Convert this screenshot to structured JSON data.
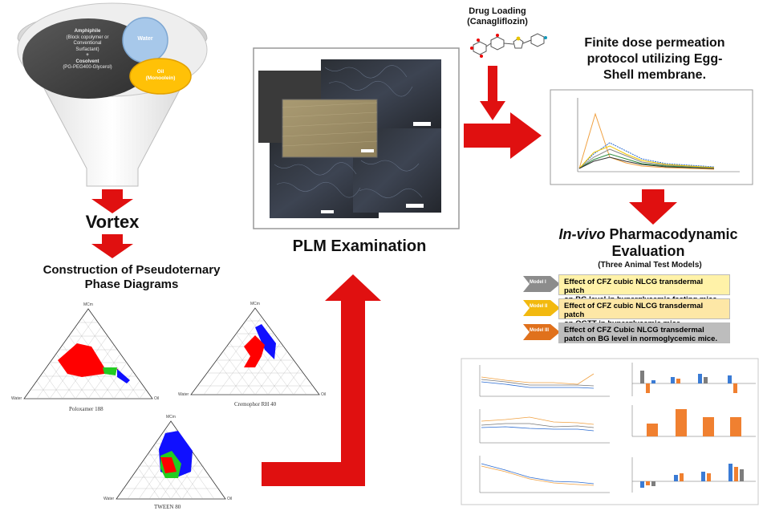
{
  "funnel": {
    "amphiphile_line1": "Amphiphile",
    "amphiphile_line2": "(Block copolymer or",
    "amphiphile_line3": "Conventional",
    "amphiphile_line4": "Surfactant)",
    "amphiphile_line5": "+",
    "amphiphile_line6": "Cosolvent",
    "amphiphile_line7": "(PG-PEG400-Glycerol)",
    "water": "Water",
    "oil_line1": "Oil",
    "oil_line2": "(Monoolein)"
  },
  "steps": {
    "vortex": "Vortex",
    "construction_line1": "Construction  of Pseudoternary",
    "construction_line2": "Phase Diagrams",
    "plm": "PLM Examination",
    "drug_line1": "Drug Loading",
    "drug_line2": "(Canagliflozin)",
    "finite_line1": "Finite dose permeation",
    "finite_line2": "protocol utilizing Egg-",
    "finite_line3": "Shell membrane.",
    "invivo_italic": "In-vivo",
    "invivo_rest": " Pharmacodynamic",
    "evaluation": "Evaluation",
    "three_models": "(Three Animal Test Models)"
  },
  "models": [
    {
      "tag": "Model I",
      "text_line1": "Effect of CFZ cubic NLCG transdermal patch",
      "text_line2": "on BG level in hyperglycemic fasting mice.",
      "color": "#fff2a8",
      "tag_color": "#8c8c8c"
    },
    {
      "tag": "Model II",
      "text_line1": "Effect of CFZ cubic NLCG transdermal patch",
      "text_line2": "on OGTT in hyperglycemic mice.",
      "color": "#fde7a6",
      "tag_color": "#f2b90f"
    },
    {
      "tag": "Model III",
      "text_line1": "Effect of CFZ Cubic NLCG  transdermal",
      "text_line2": "patch on BG  level in normoglycemic mice.",
      "color": "#bdbdbd",
      "tag_color": "#e0711c"
    }
  ],
  "ternary": {
    "captions": [
      "Poloxamer 188",
      "Cremophor RH 40",
      "TWEEN 80"
    ],
    "apex": "MCm",
    "left": "Water",
    "right": "Oil"
  },
  "colors": {
    "arrow_red": "#e01010",
    "region_red": "#ff0000",
    "region_blue": "#1010ff",
    "region_green": "#22cc22"
  }
}
